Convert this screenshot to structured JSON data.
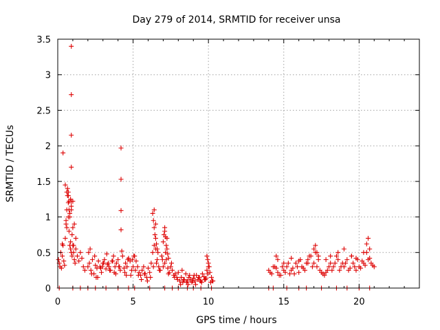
{
  "chart_data": {
    "type": "scatter",
    "title": "Day 279 of 2014, SRMTID for receiver unsa",
    "xlabel": "GPS time / hours",
    "ylabel": "SRMTID / TECUs",
    "xlim": [
      0,
      24
    ],
    "ylim": [
      0,
      3.5
    ],
    "xticks": [
      "0",
      "5",
      "10",
      "15",
      "20"
    ],
    "yticks": [
      "0",
      "0.5",
      "1",
      "1.5",
      "2",
      "2.5",
      "3",
      "3.5"
    ],
    "grid": true,
    "marker": "plus",
    "color": "#dd0000",
    "x": [
      0.05,
      0.1,
      0.15,
      0.2,
      0.25,
      0.3,
      0.35,
      0.4,
      0.45,
      0.5,
      0.55,
      0.6,
      0.65,
      0.7,
      0.75,
      0.8,
      0.85,
      0.9,
      0.95,
      1.0,
      1.05,
      1.1,
      1.15,
      1.2,
      1.3,
      1.4,
      1.5,
      1.6,
      1.7,
      1.8,
      0.3,
      0.5,
      0.6,
      0.7,
      0.75,
      0.8,
      0.85,
      0.9,
      0.95,
      1.0,
      1.1,
      1.2,
      0.65,
      0.7,
      0.75,
      0.8,
      0.9,
      1.0,
      1.05,
      0.55,
      0.6,
      0.7,
      0.85,
      0.9,
      0.9,
      0.9,
      0.9,
      0.9,
      0.35,
      4.2,
      4.2,
      4.2,
      4.2,
      2.0,
      2.1,
      2.2,
      2.3,
      2.4,
      2.5,
      2.6,
      2.7,
      2.8,
      2.9,
      3.0,
      3.1,
      3.2,
      3.3,
      3.4,
      3.5,
      3.6,
      3.7,
      3.8,
      3.9,
      4.0,
      4.1,
      4.3,
      4.4,
      4.5,
      4.6,
      4.7,
      4.8,
      4.9,
      5.0,
      2.05,
      2.25,
      2.45,
      2.65,
      2.85,
      3.05,
      3.25,
      3.45,
      3.65,
      3.85,
      4.05,
      4.25,
      4.45,
      4.65,
      4.85,
      5.05,
      2.15,
      2.55,
      2.95,
      3.35,
      3.75,
      4.15,
      4.55,
      4.95,
      5.1,
      5.2,
      5.3,
      5.4,
      5.5,
      5.6,
      5.7,
      5.8,
      5.9,
      6.0,
      6.1,
      6.2,
      6.3,
      6.4,
      6.5,
      6.6,
      6.7,
      6.8,
      6.9,
      7.0,
      7.1,
      7.2,
      7.3,
      7.4,
      7.5,
      7.6,
      7.7,
      7.8,
      7.9,
      8.0,
      5.15,
      5.35,
      5.55,
      5.75,
      5.95,
      6.15,
      6.35,
      6.55,
      6.75,
      6.95,
      7.15,
      7.35,
      7.55,
      7.75,
      7.95,
      6.3,
      6.35,
      6.4,
      6.45,
      6.5,
      6.55,
      6.6,
      6.65,
      7.0,
      7.05,
      7.1,
      7.15,
      7.2,
      7.25,
      7.3,
      7.35,
      6.4,
      6.5,
      7.1,
      7.25,
      8.1,
      8.2,
      8.3,
      8.4,
      8.5,
      8.6,
      8.7,
      8.8,
      8.9,
      9.0,
      9.1,
      9.2,
      9.3,
      9.4,
      9.5,
      9.6,
      9.7,
      9.8,
      9.9,
      10.0,
      10.1,
      10.2,
      10.3,
      8.15,
      8.35,
      8.55,
      8.75,
      8.95,
      9.15,
      9.35,
      9.55,
      9.75,
      9.95,
      10.15,
      8.25,
      8.65,
      9.05,
      9.45,
      9.85,
      10.25,
      9.9,
      9.95,
      10.0,
      10.05,
      14.0,
      14.2,
      14.4,
      14.6,
      14.8,
      15.0,
      15.2,
      15.4,
      15.6,
      15.8,
      16.0,
      16.2,
      16.4,
      16.6,
      16.8,
      17.0,
      17.2,
      17.4,
      17.6,
      17.8,
      18.0,
      18.2,
      18.4,
      18.6,
      18.8,
      14.1,
      14.3,
      14.5,
      14.7,
      14.9,
      15.1,
      15.3,
      15.5,
      15.7,
      15.9,
      16.1,
      16.3,
      16.5,
      16.7,
      16.9,
      17.1,
      17.3,
      17.5,
      17.7,
      17.9,
      18.1,
      18.3,
      18.5,
      18.7,
      18.9,
      19.0,
      19.2,
      19.4,
      19.6,
      19.8,
      20.0,
      20.2,
      20.4,
      20.6,
      20.8,
      21.0,
      19.1,
      19.3,
      19.5,
      19.7,
      19.9,
      20.1,
      20.3,
      20.5,
      20.7,
      20.9,
      14.5,
      14.6,
      15.0,
      15.5,
      16.0,
      16.6,
      17.0,
      17.1,
      17.2,
      17.3,
      17.8,
      18.1,
      18.6,
      19.0,
      19.5,
      19.8,
      20.3,
      20.5,
      20.6,
      20.7,
      0.1,
      1.0,
      1.5,
      2.0,
      2.5,
      3.2,
      4.0,
      4.7,
      5.1,
      6.1,
      7.1,
      7.6,
      8.0,
      8.6,
      9.0,
      9.5,
      10.2,
      14.0,
      14.3,
      15.2,
      16.0,
      16.5,
      17.5,
      18.5,
      19.2,
      20.0,
      20.7
    ],
    "y": [
      0.4,
      0.35,
      0.3,
      0.5,
      0.28,
      0.45,
      0.6,
      0.38,
      0.32,
      0.7,
      0.9,
      1.1,
      1.3,
      1.0,
      0.8,
      0.6,
      0.55,
      0.5,
      0.45,
      0.6,
      0.5,
      0.4,
      0.35,
      0.55,
      0.45,
      0.38,
      0.5,
      0.42,
      0.3,
      0.25,
      0.62,
      1.45,
      1.35,
      1.2,
      1.1,
      1.0,
      1.25,
      1.15,
      0.75,
      0.85,
      0.9,
      0.7,
      1.4,
      1.3,
      1.22,
      1.05,
      1.1,
      1.22,
      0.6,
      0.95,
      0.85,
      1.35,
      0.65,
      3.4,
      2.72,
      2.15,
      1.7,
      1.22,
      1.9,
      1.97,
      1.53,
      1.09,
      0.82,
      0.3,
      0.35,
      0.25,
      0.4,
      0.2,
      0.32,
      0.28,
      0.38,
      0.3,
      0.22,
      0.35,
      0.4,
      0.27,
      0.33,
      0.3,
      0.25,
      0.38,
      0.45,
      0.3,
      0.35,
      0.4,
      0.3,
      0.45,
      0.28,
      0.35,
      0.3,
      0.42,
      0.38,
      0.25,
      0.3,
      0.5,
      0.2,
      0.45,
      0.15,
      0.28,
      0.35,
      0.48,
      0.25,
      0.38,
      0.2,
      0.3,
      0.52,
      0.22,
      0.4,
      0.18,
      0.45,
      0.55,
      0.15,
      0.3,
      0.35,
      0.22,
      0.25,
      0.18,
      0.4,
      0.45,
      0.38,
      0.3,
      0.22,
      0.18,
      0.25,
      0.3,
      0.2,
      0.15,
      0.28,
      0.22,
      0.35,
      0.5,
      0.6,
      0.55,
      0.4,
      0.3,
      0.25,
      0.45,
      0.3,
      0.35,
      0.4,
      0.28,
      0.22,
      0.3,
      0.25,
      0.18,
      0.2,
      0.15,
      0.22,
      0.25,
      0.18,
      0.12,
      0.2,
      0.1,
      0.15,
      0.3,
      0.35,
      0.25,
      0.4,
      0.5,
      0.2,
      0.35,
      0.15,
      0.12,
      1.05,
      0.95,
      0.85,
      0.75,
      0.7,
      0.62,
      0.55,
      0.5,
      0.65,
      0.75,
      0.85,
      0.72,
      0.6,
      0.55,
      0.48,
      0.42,
      1.1,
      0.9,
      0.8,
      0.7,
      0.1,
      0.15,
      0.08,
      0.12,
      0.2,
      0.1,
      0.15,
      0.12,
      0.08,
      0.14,
      0.1,
      0.18,
      0.12,
      0.15,
      0.1,
      0.2,
      0.16,
      0.12,
      0.25,
      0.3,
      0.22,
      0.15,
      0.1,
      0.05,
      0.12,
      0.08,
      0.18,
      0.1,
      0.05,
      0.15,
      0.08,
      0.12,
      0.2,
      0.08,
      0.25,
      0.05,
      0.18,
      0.1,
      0.14,
      0.1,
      0.45,
      0.4,
      0.35,
      0.3,
      0.25,
      0.2,
      0.3,
      0.22,
      0.18,
      0.25,
      0.3,
      0.2,
      0.28,
      0.35,
      0.22,
      0.3,
      0.25,
      0.4,
      0.45,
      0.35,
      0.3,
      0.25,
      0.2,
      0.22,
      0.3,
      0.25,
      0.35,
      0.4,
      0.3,
      0.22,
      0.3,
      0.28,
      0.18,
      0.3,
      0.22,
      0.35,
      0.25,
      0.2,
      0.3,
      0.4,
      0.28,
      0.35,
      0.45,
      0.3,
      0.5,
      0.4,
      0.22,
      0.18,
      0.25,
      0.35,
      0.3,
      0.45,
      0.25,
      0.35,
      0.3,
      0.4,
      0.28,
      0.35,
      0.25,
      0.3,
      0.38,
      0.32,
      0.4,
      0.35,
      0.3,
      0.35,
      0.25,
      0.45,
      0.3,
      0.4,
      0.28,
      0.35,
      0.5,
      0.42,
      0.32,
      0.45,
      0.4,
      0.35,
      0.42,
      0.38,
      0.35,
      0.55,
      0.6,
      0.5,
      0.45,
      0.4,
      0.45,
      0.5,
      0.55,
      0.45,
      0.42,
      0.5,
      0.62,
      0.7,
      0.55,
      0,
      0,
      0,
      0,
      0,
      0,
      0,
      0,
      0,
      0,
      0,
      0,
      0,
      0,
      0,
      0,
      0,
      0,
      0,
      0,
      0,
      0,
      0,
      0,
      0,
      0,
      0
    ]
  }
}
